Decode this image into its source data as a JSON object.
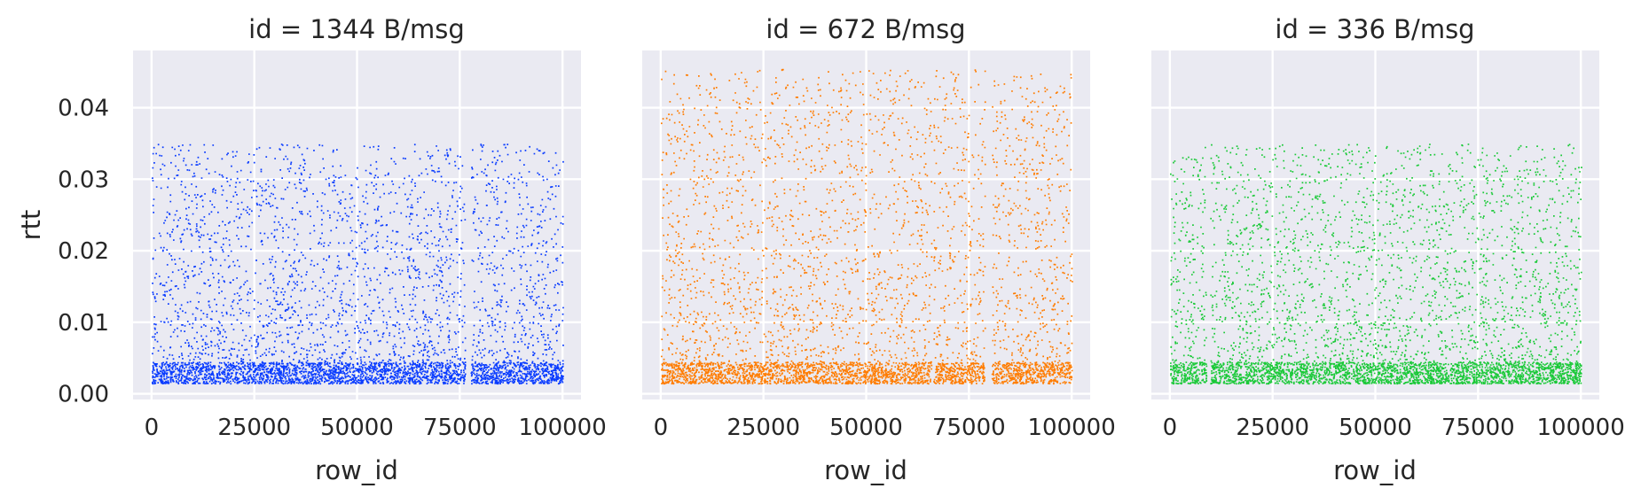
{
  "chart_data": [
    {
      "type": "scatter",
      "title": "id = 1344 B/msg",
      "xlabel": "row_id",
      "ylabel": "rtt",
      "xlim": [
        -4500,
        104500
      ],
      "ylim": [
        -0.0008,
        0.048
      ],
      "xticks": [
        0,
        25000,
        50000,
        75000,
        100000
      ],
      "yticks": [
        0.0,
        0.01,
        0.02,
        0.03,
        0.04
      ],
      "ytick_labels": [
        "0.00",
        "0.01",
        "0.02",
        "0.03",
        "0.04"
      ],
      "grid": true,
      "legend": "none",
      "series": [
        {
          "color": "#0a3cff",
          "x_range": [
            0,
            100000
          ],
          "y_range": [
            0.0015,
            0.035
          ],
          "dense_band": [
            0.0015,
            0.0045
          ],
          "gaps": [
            [
              76200,
              77600
            ]
          ]
        }
      ]
    },
    {
      "type": "scatter",
      "title": "id = 672 B/msg",
      "xlabel": "row_id",
      "ylabel": "",
      "xlim": [
        -4500,
        104500
      ],
      "ylim": [
        -0.0008,
        0.048
      ],
      "xticks": [
        0,
        25000,
        50000,
        75000,
        100000
      ],
      "yticks": [
        0.0,
        0.01,
        0.02,
        0.03,
        0.04
      ],
      "grid": true,
      "legend": "none",
      "series": [
        {
          "color": "#ff7c00",
          "x_range": [
            0,
            100000
          ],
          "y_range": [
            0.0015,
            0.0455
          ],
          "dense_band": [
            0.0015,
            0.0045
          ],
          "gaps": [
            [
              65800,
              66300
            ],
            [
              78800,
              80500
            ]
          ]
        }
      ]
    },
    {
      "type": "scatter",
      "title": "id = 336 B/msg",
      "xlabel": "row_id",
      "ylabel": "",
      "xlim": [
        -4500,
        104500
      ],
      "ylim": [
        -0.0008,
        0.048
      ],
      "xticks": [
        0,
        25000,
        50000,
        75000,
        100000
      ],
      "yticks": [
        0.0,
        0.01,
        0.02,
        0.03,
        0.04
      ],
      "grid": true,
      "legend": "none",
      "series": [
        {
          "color": "#1ac938",
          "x_range": [
            0,
            100000
          ],
          "y_range": [
            0.0015,
            0.035
          ],
          "dense_band": [
            0.0015,
            0.0045
          ],
          "gaps": [
            [
              8800,
              9800
            ]
          ]
        }
      ]
    }
  ],
  "colors": {
    "panel_bg": "#eaeaf2",
    "grid": "#ffffff",
    "text": "#262626"
  }
}
